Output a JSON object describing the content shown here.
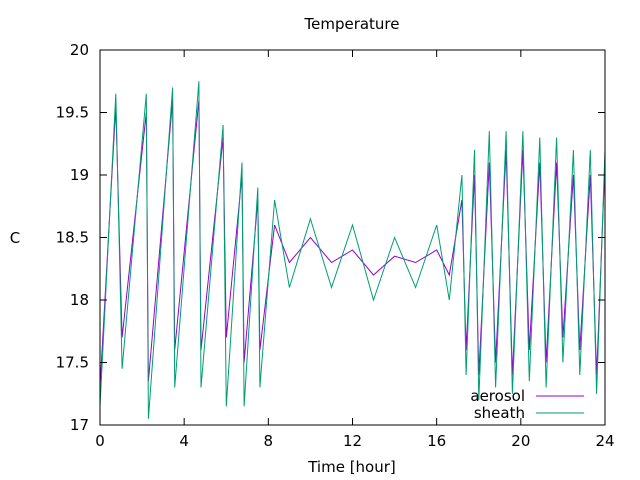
{
  "chart_data": {
    "type": "line",
    "title": "Temperature",
    "xlabel": "Time [hour]",
    "ylabel": "C",
    "xlim": [
      0,
      24
    ],
    "ylim": [
      17,
      20
    ],
    "xticks": [
      0,
      4,
      8,
      12,
      16,
      20,
      24
    ],
    "yticks": [
      17,
      17.5,
      18,
      18.5,
      19,
      19.5,
      20
    ],
    "ytick_labels": [
      "17",
      "17.5",
      "18",
      "18.5",
      "19",
      "19.5",
      "20"
    ],
    "grid": false,
    "legend_position": "bottom-right",
    "series": [
      {
        "name": "aerosol",
        "color": "#9400d3",
        "x": [
          0.0,
          0.75,
          1.05,
          2.2,
          2.3,
          3.45,
          3.55,
          4.7,
          4.8,
          5.85,
          6.0,
          6.75,
          6.85,
          7.5,
          7.6,
          8.3,
          9.0,
          10.0,
          11.0,
          12.0,
          13.0,
          14.0,
          15.0,
          16.0,
          16.6,
          17.2,
          17.4,
          17.8,
          18.0,
          18.5,
          18.8,
          19.3,
          19.6,
          20.1,
          20.4,
          20.9,
          21.2,
          21.7,
          22.0,
          22.5,
          22.8,
          23.3,
          23.6,
          24.0
        ],
        "y": [
          17.3,
          19.55,
          17.7,
          19.5,
          17.35,
          19.6,
          17.6,
          19.6,
          17.6,
          19.3,
          17.7,
          19.0,
          17.5,
          18.8,
          17.6,
          18.6,
          18.3,
          18.5,
          18.3,
          18.4,
          18.2,
          18.35,
          18.3,
          18.4,
          18.2,
          18.8,
          17.6,
          19.0,
          17.4,
          19.1,
          17.5,
          19.2,
          17.4,
          19.2,
          17.6,
          19.1,
          17.5,
          19.1,
          17.7,
          19.0,
          17.6,
          19.0,
          17.4,
          19.1
        ]
      },
      {
        "name": "sheath",
        "color": "#009e73",
        "x": [
          0.0,
          0.75,
          1.05,
          2.2,
          2.3,
          3.45,
          3.55,
          4.7,
          4.8,
          5.85,
          6.0,
          6.75,
          6.85,
          7.5,
          7.6,
          8.3,
          9.0,
          10.0,
          11.0,
          12.0,
          13.0,
          14.0,
          15.0,
          16.0,
          16.6,
          17.2,
          17.4,
          17.8,
          18.0,
          18.5,
          18.8,
          19.3,
          19.6,
          20.1,
          20.4,
          20.9,
          21.2,
          21.7,
          22.0,
          22.5,
          22.8,
          23.3,
          23.6,
          24.0
        ],
        "y": [
          17.15,
          19.65,
          17.45,
          19.65,
          17.05,
          19.7,
          17.3,
          19.75,
          17.3,
          19.4,
          17.15,
          19.1,
          17.15,
          18.9,
          17.3,
          18.8,
          18.1,
          18.65,
          18.1,
          18.6,
          18.0,
          18.5,
          18.1,
          18.6,
          18.0,
          19.0,
          17.4,
          19.2,
          17.2,
          19.35,
          17.3,
          19.35,
          17.25,
          19.35,
          17.35,
          19.3,
          17.3,
          19.3,
          17.5,
          19.2,
          17.4,
          19.2,
          17.25,
          19.2
        ]
      }
    ]
  }
}
